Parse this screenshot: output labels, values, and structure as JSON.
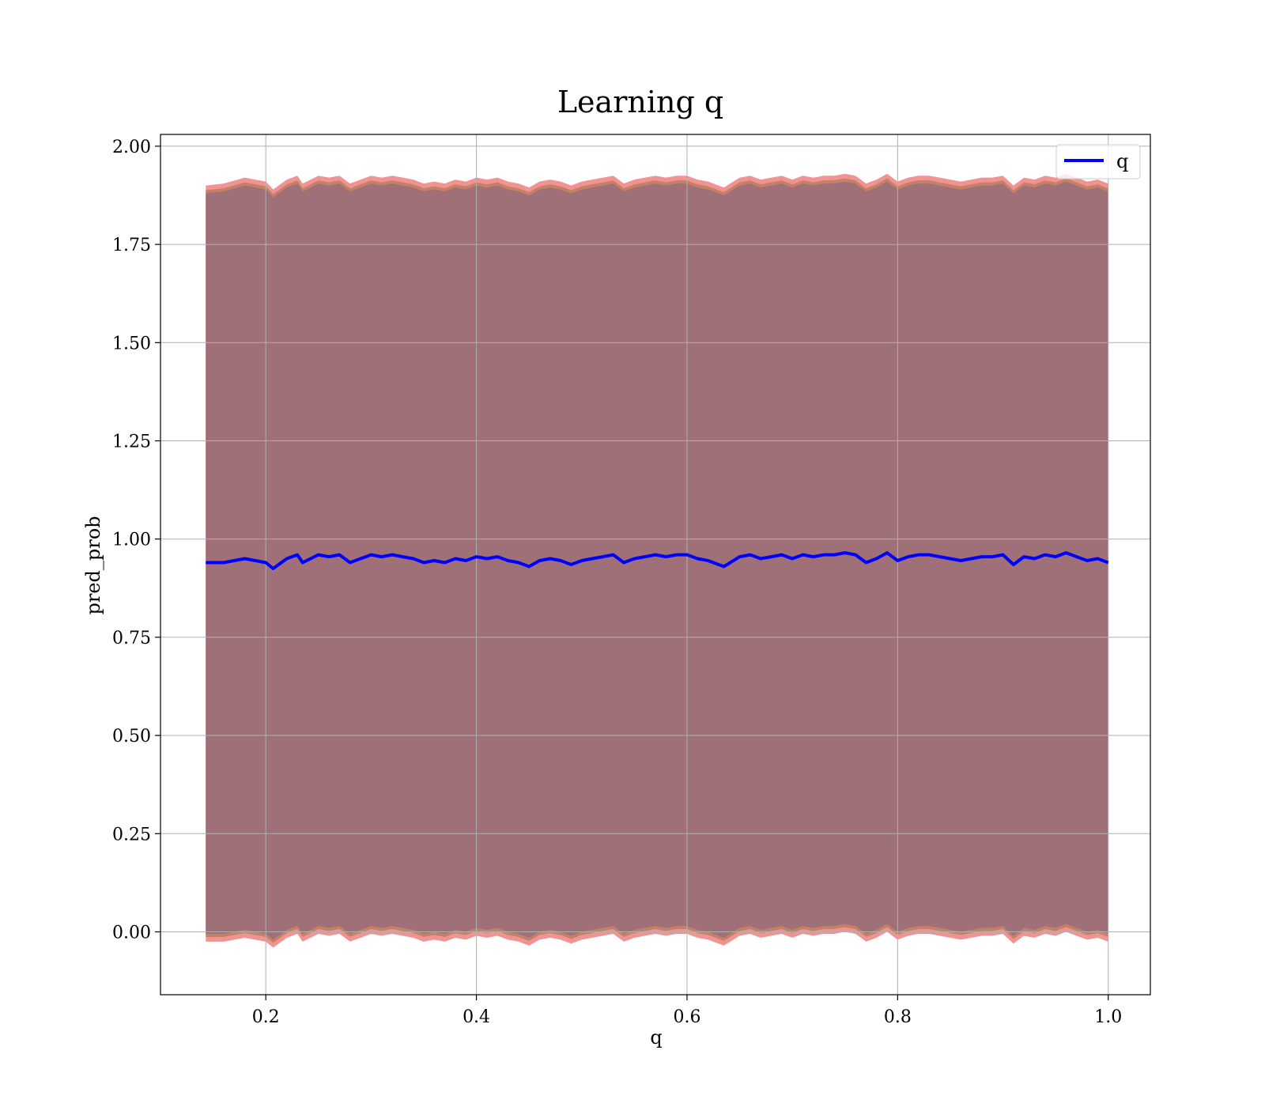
{
  "chart_data": {
    "type": "line",
    "title": "Learning q",
    "xlabel": "q",
    "ylabel": "pred_prob",
    "xlim": [
      0.1,
      1.04
    ],
    "ylim": [
      -0.16,
      2.03
    ],
    "xticks": [
      0.2,
      0.4,
      0.6,
      0.8,
      1.0
    ],
    "xtick_labels": [
      "0.2",
      "0.4",
      "0.6",
      "0.8",
      "1.0"
    ],
    "yticks": [
      0.0,
      0.25,
      0.5,
      0.75,
      1.0,
      1.25,
      1.5,
      1.75,
      2.0
    ],
    "ytick_labels": [
      "0.00",
      "0.25",
      "0.50",
      "0.75",
      "1.00",
      "1.25",
      "1.50",
      "1.75",
      "2.00"
    ],
    "grid": true,
    "legend": {
      "position": "top-right",
      "entries": [
        "q"
      ]
    },
    "colors": {
      "line": "#0000ff",
      "band_outer": "#f08080",
      "band_mid": "#c08060",
      "band_inner": "#a07078",
      "grid": "#b0b0b0"
    },
    "series": [
      {
        "name": "q",
        "x": [
          0.143,
          0.16,
          0.18,
          0.2,
          0.207,
          0.22,
          0.23,
          0.235,
          0.25,
          0.26,
          0.27,
          0.28,
          0.29,
          0.3,
          0.31,
          0.32,
          0.33,
          0.34,
          0.35,
          0.36,
          0.37,
          0.38,
          0.39,
          0.4,
          0.41,
          0.42,
          0.43,
          0.44,
          0.45,
          0.46,
          0.47,
          0.48,
          0.49,
          0.5,
          0.51,
          0.52,
          0.53,
          0.54,
          0.55,
          0.56,
          0.57,
          0.58,
          0.59,
          0.6,
          0.61,
          0.62,
          0.63,
          0.635,
          0.65,
          0.66,
          0.67,
          0.68,
          0.69,
          0.7,
          0.71,
          0.72,
          0.73,
          0.74,
          0.75,
          0.76,
          0.77,
          0.78,
          0.79,
          0.8,
          0.81,
          0.82,
          0.83,
          0.84,
          0.85,
          0.86,
          0.87,
          0.88,
          0.89,
          0.9,
          0.91,
          0.92,
          0.93,
          0.94,
          0.95,
          0.96,
          0.97,
          0.98,
          0.99,
          1.0
        ],
        "y": [
          0.94,
          0.94,
          0.95,
          0.94,
          0.925,
          0.95,
          0.96,
          0.94,
          0.96,
          0.955,
          0.96,
          0.94,
          0.95,
          0.96,
          0.955,
          0.96,
          0.955,
          0.95,
          0.94,
          0.945,
          0.94,
          0.95,
          0.945,
          0.955,
          0.95,
          0.955,
          0.945,
          0.94,
          0.93,
          0.945,
          0.95,
          0.945,
          0.935,
          0.945,
          0.95,
          0.955,
          0.96,
          0.94,
          0.95,
          0.955,
          0.96,
          0.955,
          0.96,
          0.96,
          0.95,
          0.945,
          0.935,
          0.93,
          0.955,
          0.96,
          0.95,
          0.955,
          0.96,
          0.95,
          0.96,
          0.955,
          0.96,
          0.96,
          0.965,
          0.96,
          0.94,
          0.95,
          0.965,
          0.945,
          0.955,
          0.96,
          0.96,
          0.955,
          0.95,
          0.945,
          0.95,
          0.955,
          0.955,
          0.96,
          0.935,
          0.955,
          0.95,
          0.96,
          0.955,
          0.965,
          0.955,
          0.945,
          0.95,
          0.94
        ],
        "upper": [
          1.88,
          1.885,
          1.9,
          1.89,
          1.87,
          1.895,
          1.905,
          1.885,
          1.905,
          1.9,
          1.905,
          1.885,
          1.895,
          1.905,
          1.9,
          1.905,
          1.9,
          1.895,
          1.885,
          1.89,
          1.885,
          1.895,
          1.89,
          1.9,
          1.895,
          1.9,
          1.89,
          1.885,
          1.875,
          1.89,
          1.895,
          1.89,
          1.88,
          1.89,
          1.895,
          1.9,
          1.905,
          1.885,
          1.895,
          1.9,
          1.905,
          1.9,
          1.905,
          1.905,
          1.895,
          1.89,
          1.88,
          1.875,
          1.9,
          1.905,
          1.895,
          1.9,
          1.905,
          1.895,
          1.905,
          1.9,
          1.905,
          1.905,
          1.91,
          1.905,
          1.885,
          1.895,
          1.91,
          1.89,
          1.9,
          1.905,
          1.905,
          1.9,
          1.895,
          1.89,
          1.895,
          1.9,
          1.9,
          1.905,
          1.88,
          1.9,
          1.895,
          1.905,
          1.9,
          1.91,
          1.9,
          1.89,
          1.895,
          1.885
        ],
        "lower": [
          -0.005,
          -0.005,
          0.005,
          -0.005,
          -0.02,
          0.005,
          0.015,
          -0.005,
          0.015,
          0.01,
          0.015,
          -0.005,
          0.005,
          0.015,
          0.01,
          0.015,
          0.01,
          0.005,
          -0.005,
          0.0,
          -0.005,
          0.005,
          0.0,
          0.01,
          0.005,
          0.01,
          0.0,
          -0.005,
          -0.015,
          0.0,
          0.005,
          0.0,
          -0.01,
          0.0,
          0.005,
          0.01,
          0.015,
          -0.005,
          0.005,
          0.01,
          0.015,
          0.01,
          0.015,
          0.015,
          0.005,
          0.0,
          -0.01,
          -0.015,
          0.01,
          0.015,
          0.005,
          0.01,
          0.015,
          0.005,
          0.015,
          0.01,
          0.015,
          0.015,
          0.02,
          0.015,
          -0.005,
          0.005,
          0.02,
          0.0,
          0.01,
          0.015,
          0.015,
          0.01,
          0.005,
          0.0,
          0.005,
          0.01,
          0.01,
          0.015,
          -0.01,
          0.01,
          0.005,
          0.015,
          0.01,
          0.02,
          0.01,
          0.0,
          0.005,
          -0.005
        ]
      }
    ]
  }
}
